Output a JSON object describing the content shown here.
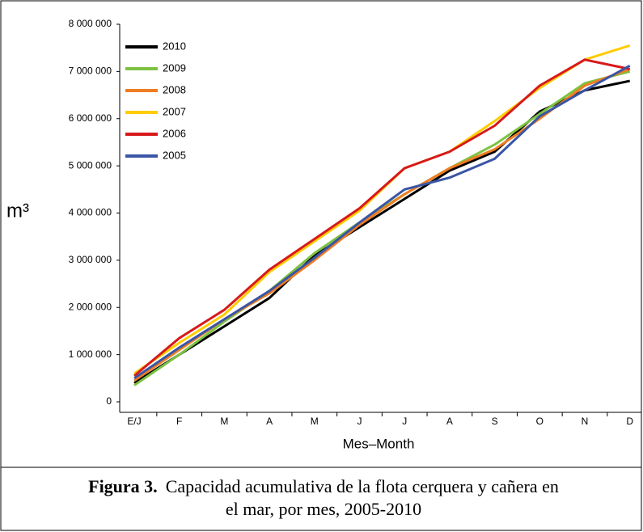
{
  "chart_data": {
    "type": "line",
    "ylabel": "m³",
    "xlabel": "Mes–Month",
    "categories": [
      "E/J",
      "F",
      "M",
      "A",
      "M",
      "J",
      "J",
      "A",
      "S",
      "O",
      "N",
      "D"
    ],
    "ylim": [
      0,
      8000000
    ],
    "yticks": [
      0,
      {
        "value": 1000000,
        "label": "1 000 000"
      },
      {
        "value": 2000000,
        "label": "2 000 000"
      },
      {
        "value": 3000000,
        "label": "3 000 000"
      },
      {
        "value": 4000000,
        "label": "4 000 000"
      },
      {
        "value": 5000000,
        "label": "5 000 000"
      },
      {
        "value": 6000000,
        "label": "6 000 000"
      },
      {
        "value": 7000000,
        "label": "7 000 000"
      },
      {
        "value": 8000000,
        "label": "8 000 000"
      }
    ],
    "legend": "upper left",
    "series": [
      {
        "name": "2010",
        "color": "#000000",
        "values": [
          400000,
          1000000,
          1600000,
          2200000,
          3100000,
          3700000,
          4300000,
          4900000,
          5300000,
          6150000,
          6600000,
          6800000
        ]
      },
      {
        "name": "2009",
        "color": "#7dc242",
        "values": [
          350000,
          1000000,
          1700000,
          2350000,
          3150000,
          3800000,
          4400000,
          4950000,
          5450000,
          6100000,
          6750000,
          7000000
        ]
      },
      {
        "name": "2008",
        "color": "#f07d22",
        "values": [
          450000,
          1100000,
          1750000,
          2300000,
          3000000,
          3750000,
          4400000,
          4950000,
          5350000,
          6000000,
          6700000,
          7050000
        ]
      },
      {
        "name": "2007",
        "color": "#ffcc00",
        "values": [
          600000,
          1250000,
          1850000,
          2750000,
          3400000,
          4050000,
          4950000,
          5300000,
          5950000,
          6650000,
          7250000,
          7550000
        ]
      },
      {
        "name": "2006",
        "color": "#d7191c",
        "values": [
          550000,
          1350000,
          1950000,
          2800000,
          3450000,
          4100000,
          4950000,
          5300000,
          5850000,
          6700000,
          7250000,
          7050000
        ]
      },
      {
        "name": "2005",
        "color": "#3a55a4",
        "values": [
          500000,
          1150000,
          1750000,
          2350000,
          3050000,
          3800000,
          4500000,
          4750000,
          5150000,
          6050000,
          6600000,
          7120000
        ]
      }
    ]
  },
  "caption": {
    "label": "Figura 3.",
    "lines": [
      "Capacidad acumulativa de la flota cerquera y cañera en",
      "el mar, por mes, 2005-2010"
    ]
  }
}
